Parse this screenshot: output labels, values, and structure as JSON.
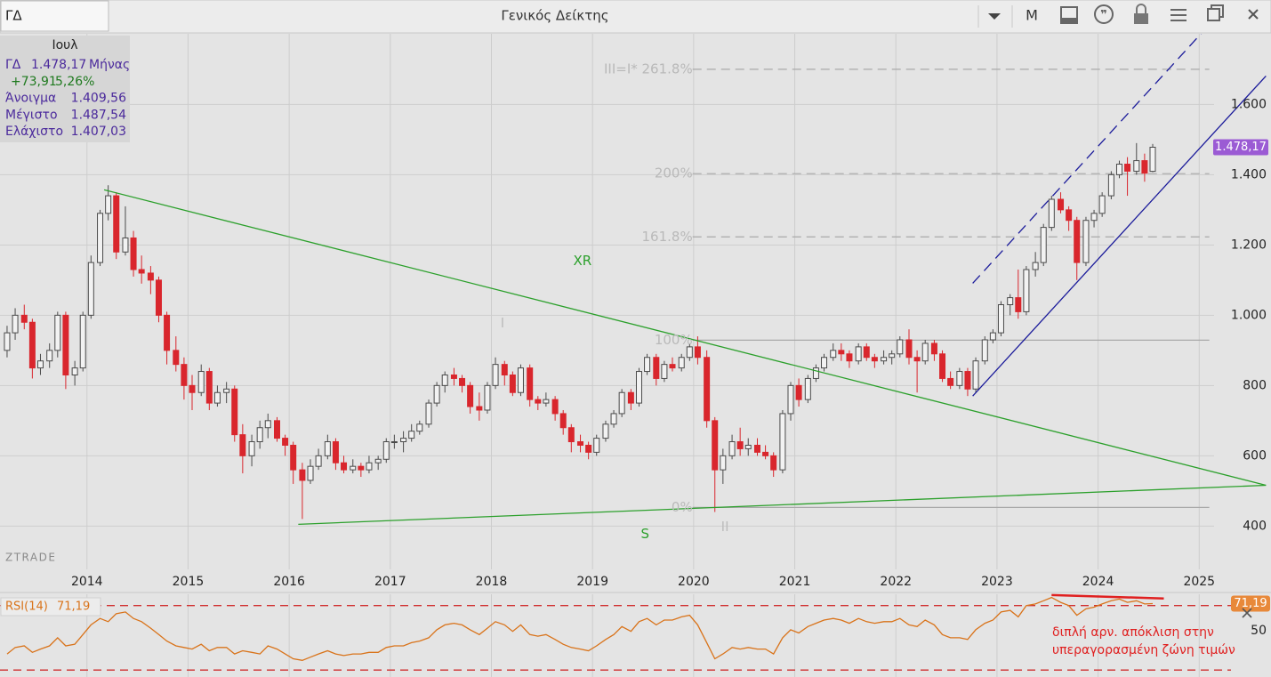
{
  "toolbar": {
    "symbol": "ΓΔ",
    "title": "Γενικός Δείκτης",
    "period": "M"
  },
  "info": {
    "month": "Ιουλ",
    "rows": [
      [
        "ΓΔ",
        "1.478,17",
        "Μήνας"
      ],
      [
        "+73,91",
        "5,26%"
      ],
      [
        "Άνοιγμα",
        "1.409,56"
      ],
      [
        "Μέγιστο",
        "1.487,54"
      ],
      [
        "Ελάχιστο",
        "1.407,03"
      ]
    ]
  },
  "chart_data": [
    {
      "type": "candlestick",
      "watermark": "ZTRADE",
      "up_color": "#f2f2f2",
      "down_color": "#d9262d",
      "grid": true,
      "xlim": [
        2013.14,
        2025.71
      ],
      "xticks": [
        2014,
        2015,
        2016,
        2017,
        2018,
        2019,
        2020,
        2021,
        2022,
        2023,
        2024,
        2025
      ],
      "ylim": [
        297,
        1801
      ],
      "yticks": [
        {
          "value": 1600,
          "label": "1.600"
        },
        {
          "value": 1400,
          "label": "1.400"
        },
        {
          "value": 1200,
          "label": "1.200"
        },
        {
          "value": 1000,
          "label": "1.000"
        },
        800,
        600,
        400
      ],
      "x": [
        2013.21,
        2013.29,
        2013.38,
        2013.46,
        2013.54,
        2013.63,
        2013.71,
        2013.79,
        2013.88,
        2013.96,
        2014.04,
        2014.13,
        2014.21,
        2014.29,
        2014.38,
        2014.46,
        2014.54,
        2014.63,
        2014.71,
        2014.79,
        2014.88,
        2014.96,
        2015.04,
        2015.13,
        2015.21,
        2015.29,
        2015.38,
        2015.46,
        2015.54,
        2015.63,
        2015.71,
        2015.79,
        2015.88,
        2015.96,
        2016.04,
        2016.13,
        2016.21,
        2016.29,
        2016.38,
        2016.46,
        2016.54,
        2016.63,
        2016.71,
        2016.79,
        2016.88,
        2016.96,
        2017.04,
        2017.13,
        2017.21,
        2017.29,
        2017.38,
        2017.46,
        2017.54,
        2017.63,
        2017.71,
        2017.79,
        2017.88,
        2017.96,
        2018.04,
        2018.13,
        2018.21,
        2018.29,
        2018.38,
        2018.46,
        2018.54,
        2018.63,
        2018.71,
        2018.79,
        2018.88,
        2018.96,
        2019.04,
        2019.13,
        2019.21,
        2019.29,
        2019.38,
        2019.46,
        2019.54,
        2019.63,
        2019.71,
        2019.79,
        2019.88,
        2019.96,
        2020.04,
        2020.13,
        2020.21,
        2020.29,
        2020.38,
        2020.46,
        2020.54,
        2020.63,
        2020.71,
        2020.79,
        2020.88,
        2020.96,
        2021.04,
        2021.13,
        2021.21,
        2021.29,
        2021.38,
        2021.46,
        2021.54,
        2021.63,
        2021.71,
        2021.79,
        2021.88,
        2021.96,
        2022.04,
        2022.13,
        2022.21,
        2022.29,
        2022.38,
        2022.46,
        2022.54,
        2022.63,
        2022.71,
        2022.79,
        2022.88,
        2022.96,
        2023.04,
        2023.13,
        2023.21,
        2023.29,
        2023.38,
        2023.46,
        2023.54,
        2023.63,
        2023.71,
        2023.79,
        2023.88,
        2023.96,
        2024.04,
        2024.13,
        2024.21,
        2024.29,
        2024.38,
        2024.46,
        2024.54
      ],
      "ohlc": [
        [
          900,
          970,
          880,
          950
        ],
        [
          950,
          1020,
          930,
          1000
        ],
        [
          1000,
          1030,
          960,
          980
        ],
        [
          980,
          990,
          820,
          850
        ],
        [
          850,
          890,
          830,
          870
        ],
        [
          870,
          920,
          850,
          900
        ],
        [
          900,
          1010,
          880,
          1000
        ],
        [
          1000,
          1010,
          790,
          830
        ],
        [
          830,
          870,
          800,
          850
        ],
        [
          850,
          1010,
          840,
          1000
        ],
        [
          1000,
          1170,
          990,
          1150
        ],
        [
          1150,
          1300,
          1140,
          1290
        ],
        [
          1290,
          1370,
          1270,
          1340
        ],
        [
          1340,
          1350,
          1160,
          1180
        ],
        [
          1180,
          1310,
          1170,
          1220
        ],
        [
          1220,
          1240,
          1110,
          1130
        ],
        [
          1130,
          1170,
          1090,
          1120
        ],
        [
          1120,
          1140,
          1060,
          1100
        ],
        [
          1100,
          1110,
          980,
          1000
        ],
        [
          1000,
          1010,
          860,
          900
        ],
        [
          900,
          940,
          840,
          860
        ],
        [
          860,
          880,
          760,
          800
        ],
        [
          800,
          830,
          730,
          780
        ],
        [
          780,
          860,
          770,
          840
        ],
        [
          840,
          850,
          730,
          750
        ],
        [
          750,
          800,
          740,
          780
        ],
        [
          780,
          810,
          750,
          790
        ],
        [
          790,
          800,
          640,
          660
        ],
        [
          660,
          690,
          550,
          600
        ],
        [
          600,
          660,
          570,
          640
        ],
        [
          640,
          700,
          620,
          680
        ],
        [
          680,
          720,
          650,
          700
        ],
        [
          700,
          710,
          640,
          650
        ],
        [
          650,
          660,
          600,
          630
        ],
        [
          630,
          640,
          520,
          560
        ],
        [
          560,
          580,
          420,
          530
        ],
        [
          530,
          590,
          520,
          570
        ],
        [
          570,
          620,
          560,
          600
        ],
        [
          600,
          660,
          590,
          640
        ],
        [
          640,
          650,
          560,
          580
        ],
        [
          580,
          600,
          550,
          560
        ],
        [
          560,
          590,
          550,
          570
        ],
        [
          570,
          580,
          540,
          560
        ],
        [
          560,
          600,
          550,
          580
        ],
        [
          580,
          600,
          560,
          590
        ],
        [
          590,
          650,
          580,
          640
        ],
        [
          640,
          660,
          620,
          640
        ],
        [
          640,
          670,
          610,
          650
        ],
        [
          650,
          690,
          640,
          670
        ],
        [
          670,
          700,
          660,
          690
        ],
        [
          690,
          760,
          680,
          750
        ],
        [
          750,
          810,
          740,
          800
        ],
        [
          800,
          840,
          780,
          830
        ],
        [
          830,
          850,
          800,
          820
        ],
        [
          820,
          830,
          780,
          800
        ],
        [
          800,
          810,
          720,
          740
        ],
        [
          740,
          780,
          700,
          730
        ],
        [
          730,
          810,
          720,
          800
        ],
        [
          800,
          880,
          790,
          860
        ],
        [
          860,
          870,
          800,
          830
        ],
        [
          830,
          840,
          770,
          780
        ],
        [
          780,
          860,
          770,
          850
        ],
        [
          850,
          860,
          740,
          760
        ],
        [
          760,
          770,
          730,
          750
        ],
        [
          750,
          780,
          740,
          760
        ],
        [
          760,
          770,
          700,
          720
        ],
        [
          720,
          730,
          660,
          680
        ],
        [
          680,
          690,
          610,
          640
        ],
        [
          640,
          660,
          610,
          630
        ],
        [
          630,
          640,
          590,
          610
        ],
        [
          610,
          660,
          600,
          650
        ],
        [
          650,
          700,
          640,
          690
        ],
        [
          690,
          730,
          680,
          720
        ],
        [
          720,
          790,
          710,
          780
        ],
        [
          780,
          790,
          730,
          750
        ],
        [
          750,
          850,
          740,
          840
        ],
        [
          840,
          890,
          830,
          880
        ],
        [
          880,
          890,
          800,
          820
        ],
        [
          820,
          870,
          810,
          860
        ],
        [
          860,
          880,
          840,
          850
        ],
        [
          850,
          890,
          840,
          880
        ],
        [
          880,
          920,
          870,
          910
        ],
        [
          910,
          940,
          860,
          880
        ],
        [
          880,
          900,
          680,
          700
        ],
        [
          700,
          710,
          440,
          560
        ],
        [
          560,
          620,
          520,
          600
        ],
        [
          600,
          660,
          590,
          640
        ],
        [
          640,
          680,
          600,
          620
        ],
        [
          620,
          650,
          600,
          630
        ],
        [
          630,
          650,
          600,
          610
        ],
        [
          610,
          630,
          590,
          600
        ],
        [
          600,
          610,
          540,
          560
        ],
        [
          560,
          730,
          550,
          720
        ],
        [
          720,
          810,
          700,
          800
        ],
        [
          800,
          820,
          740,
          760
        ],
        [
          760,
          830,
          750,
          820
        ],
        [
          820,
          860,
          810,
          850
        ],
        [
          850,
          890,
          840,
          880
        ],
        [
          880,
          920,
          870,
          900
        ],
        [
          900,
          920,
          870,
          890
        ],
        [
          890,
          900,
          850,
          870
        ],
        [
          870,
          920,
          860,
          910
        ],
        [
          910,
          920,
          870,
          880
        ],
        [
          880,
          890,
          850,
          870
        ],
        [
          870,
          900,
          860,
          880
        ],
        [
          880,
          900,
          860,
          890
        ],
        [
          890,
          940,
          880,
          930
        ],
        [
          930,
          960,
          860,
          880
        ],
        [
          880,
          900,
          780,
          870
        ],
        [
          870,
          930,
          860,
          920
        ],
        [
          920,
          930,
          870,
          890
        ],
        [
          890,
          900,
          810,
          820
        ],
        [
          820,
          840,
          790,
          800
        ],
        [
          800,
          850,
          790,
          840
        ],
        [
          840,
          850,
          770,
          790
        ],
        [
          790,
          880,
          780,
          870
        ],
        [
          870,
          940,
          860,
          930
        ],
        [
          930,
          960,
          920,
          950
        ],
        [
          950,
          1040,
          940,
          1030
        ],
        [
          1030,
          1060,
          1000,
          1050
        ],
        [
          1050,
          1130,
          990,
          1010
        ],
        [
          1010,
          1140,
          1000,
          1130
        ],
        [
          1130,
          1180,
          1110,
          1150
        ],
        [
          1150,
          1260,
          1140,
          1250
        ],
        [
          1250,
          1340,
          1240,
          1330
        ],
        [
          1330,
          1350,
          1290,
          1300
        ],
        [
          1300,
          1310,
          1240,
          1270
        ],
        [
          1270,
          1280,
          1100,
          1150
        ],
        [
          1150,
          1280,
          1140,
          1270
        ],
        [
          1270,
          1300,
          1250,
          1290
        ],
        [
          1290,
          1350,
          1280,
          1340
        ],
        [
          1340,
          1410,
          1330,
          1400
        ],
        [
          1400,
          1440,
          1390,
          1430
        ],
        [
          1430,
          1450,
          1340,
          1410
        ],
        [
          1410,
          1490,
          1400,
          1440
        ],
        [
          1440,
          1460,
          1380,
          1404.26
        ],
        [
          1409.56,
          1487.54,
          1407.03,
          1478.17
        ]
      ],
      "current": {
        "value": 1478.17,
        "label": "1.478,17",
        "color": "#9b5bd4"
      },
      "fib_x": [
        2019.99,
        2025.1
      ],
      "fib": [
        {
          "value": 1700,
          "label": "III=I*  261.8%",
          "dashed": true
        },
        {
          "value": 1403,
          "label": "200%",
          "dashed": true
        },
        {
          "value": 1223,
          "label": "161.8%",
          "dashed": true
        },
        {
          "value": 929,
          "label": "100%",
          "dashed": false
        },
        {
          "value": 453,
          "label": "0%",
          "dashed": false
        }
      ],
      "trendlines": [
        {
          "color": "#2ca02c",
          "dashed": false,
          "points": [
            [
              2014.17,
              1357
            ],
            [
              2025.66,
              516
            ]
          ]
        },
        {
          "color": "#2ca02c",
          "dashed": false,
          "points": [
            [
              2016.09,
              405
            ],
            [
              2025.66,
              516
            ]
          ]
        },
        {
          "color": "#1a1a9a",
          "dashed": false,
          "points": [
            [
              2022.76,
              770
            ],
            [
              2025.66,
              1681
            ]
          ]
        },
        {
          "color": "#1a1a9a",
          "dashed": true,
          "points": [
            [
              2022.76,
              1091
            ],
            [
              2025.03,
              1805
            ]
          ]
        }
      ],
      "annotations": [
        {
          "text": "XR",
          "x": 2018.9,
          "y": 1154,
          "color": "#2ca02c"
        },
        {
          "text": "S",
          "x": 2019.52,
          "y": 377,
          "color": "#2ca02c"
        },
        {
          "text": "I",
          "x": 2018.11,
          "y": 977,
          "color": "#bdbdbd"
        },
        {
          "text": "II",
          "x": 2020.31,
          "y": 397,
          "color": "#bdbdbd"
        }
      ]
    },
    {
      "type": "line",
      "name": "RSI(14)",
      "color": "#d9731a",
      "ylim": [
        25.7,
        77
      ],
      "yticks": [
        50
      ],
      "levels": [
        70,
        30
      ],
      "level_color": "#d03030",
      "values": [
        40,
        44,
        45,
        41,
        43,
        45,
        50,
        45,
        46,
        52,
        58,
        62,
        60,
        65,
        66,
        62,
        60,
        56,
        52,
        48,
        45,
        44,
        43,
        46,
        42,
        44,
        44,
        40,
        42,
        41,
        40,
        45,
        43,
        40,
        37,
        36,
        38,
        40,
        42,
        40,
        39,
        40,
        40,
        41,
        41,
        44,
        45,
        45,
        47,
        48,
        50,
        55,
        58,
        59,
        58,
        55,
        52,
        56,
        60,
        58,
        54,
        58,
        52,
        51,
        52,
        49,
        46,
        44,
        43,
        42,
        45,
        49,
        52,
        57,
        54,
        60,
        62,
        58,
        61,
        61,
        63,
        64,
        58,
        47,
        37,
        40,
        44,
        43,
        44,
        43,
        43,
        40,
        50,
        55,
        53,
        57,
        59,
        61,
        62,
        61,
        59,
        62,
        60,
        59,
        60,
        60,
        62,
        58,
        57,
        61,
        58,
        52,
        50,
        50,
        49,
        55,
        59,
        61,
        66,
        67,
        63,
        70,
        71,
        73,
        75,
        72,
        70,
        64,
        68,
        69,
        71,
        73,
        74,
        72,
        73,
        71,
        71.19
      ],
      "current": {
        "value": 71.19,
        "label": "71,19",
        "color": "#e8893a"
      },
      "divergence": {
        "color": "#e02020",
        "points": [
          [
            2023.54,
            76.5
          ],
          [
            2024.65,
            74.4
          ]
        ]
      },
      "note": [
        "διπλή αρν. απόκλιση στην",
        "υπεραγορασμένη ζώνη τιμών"
      ]
    }
  ]
}
